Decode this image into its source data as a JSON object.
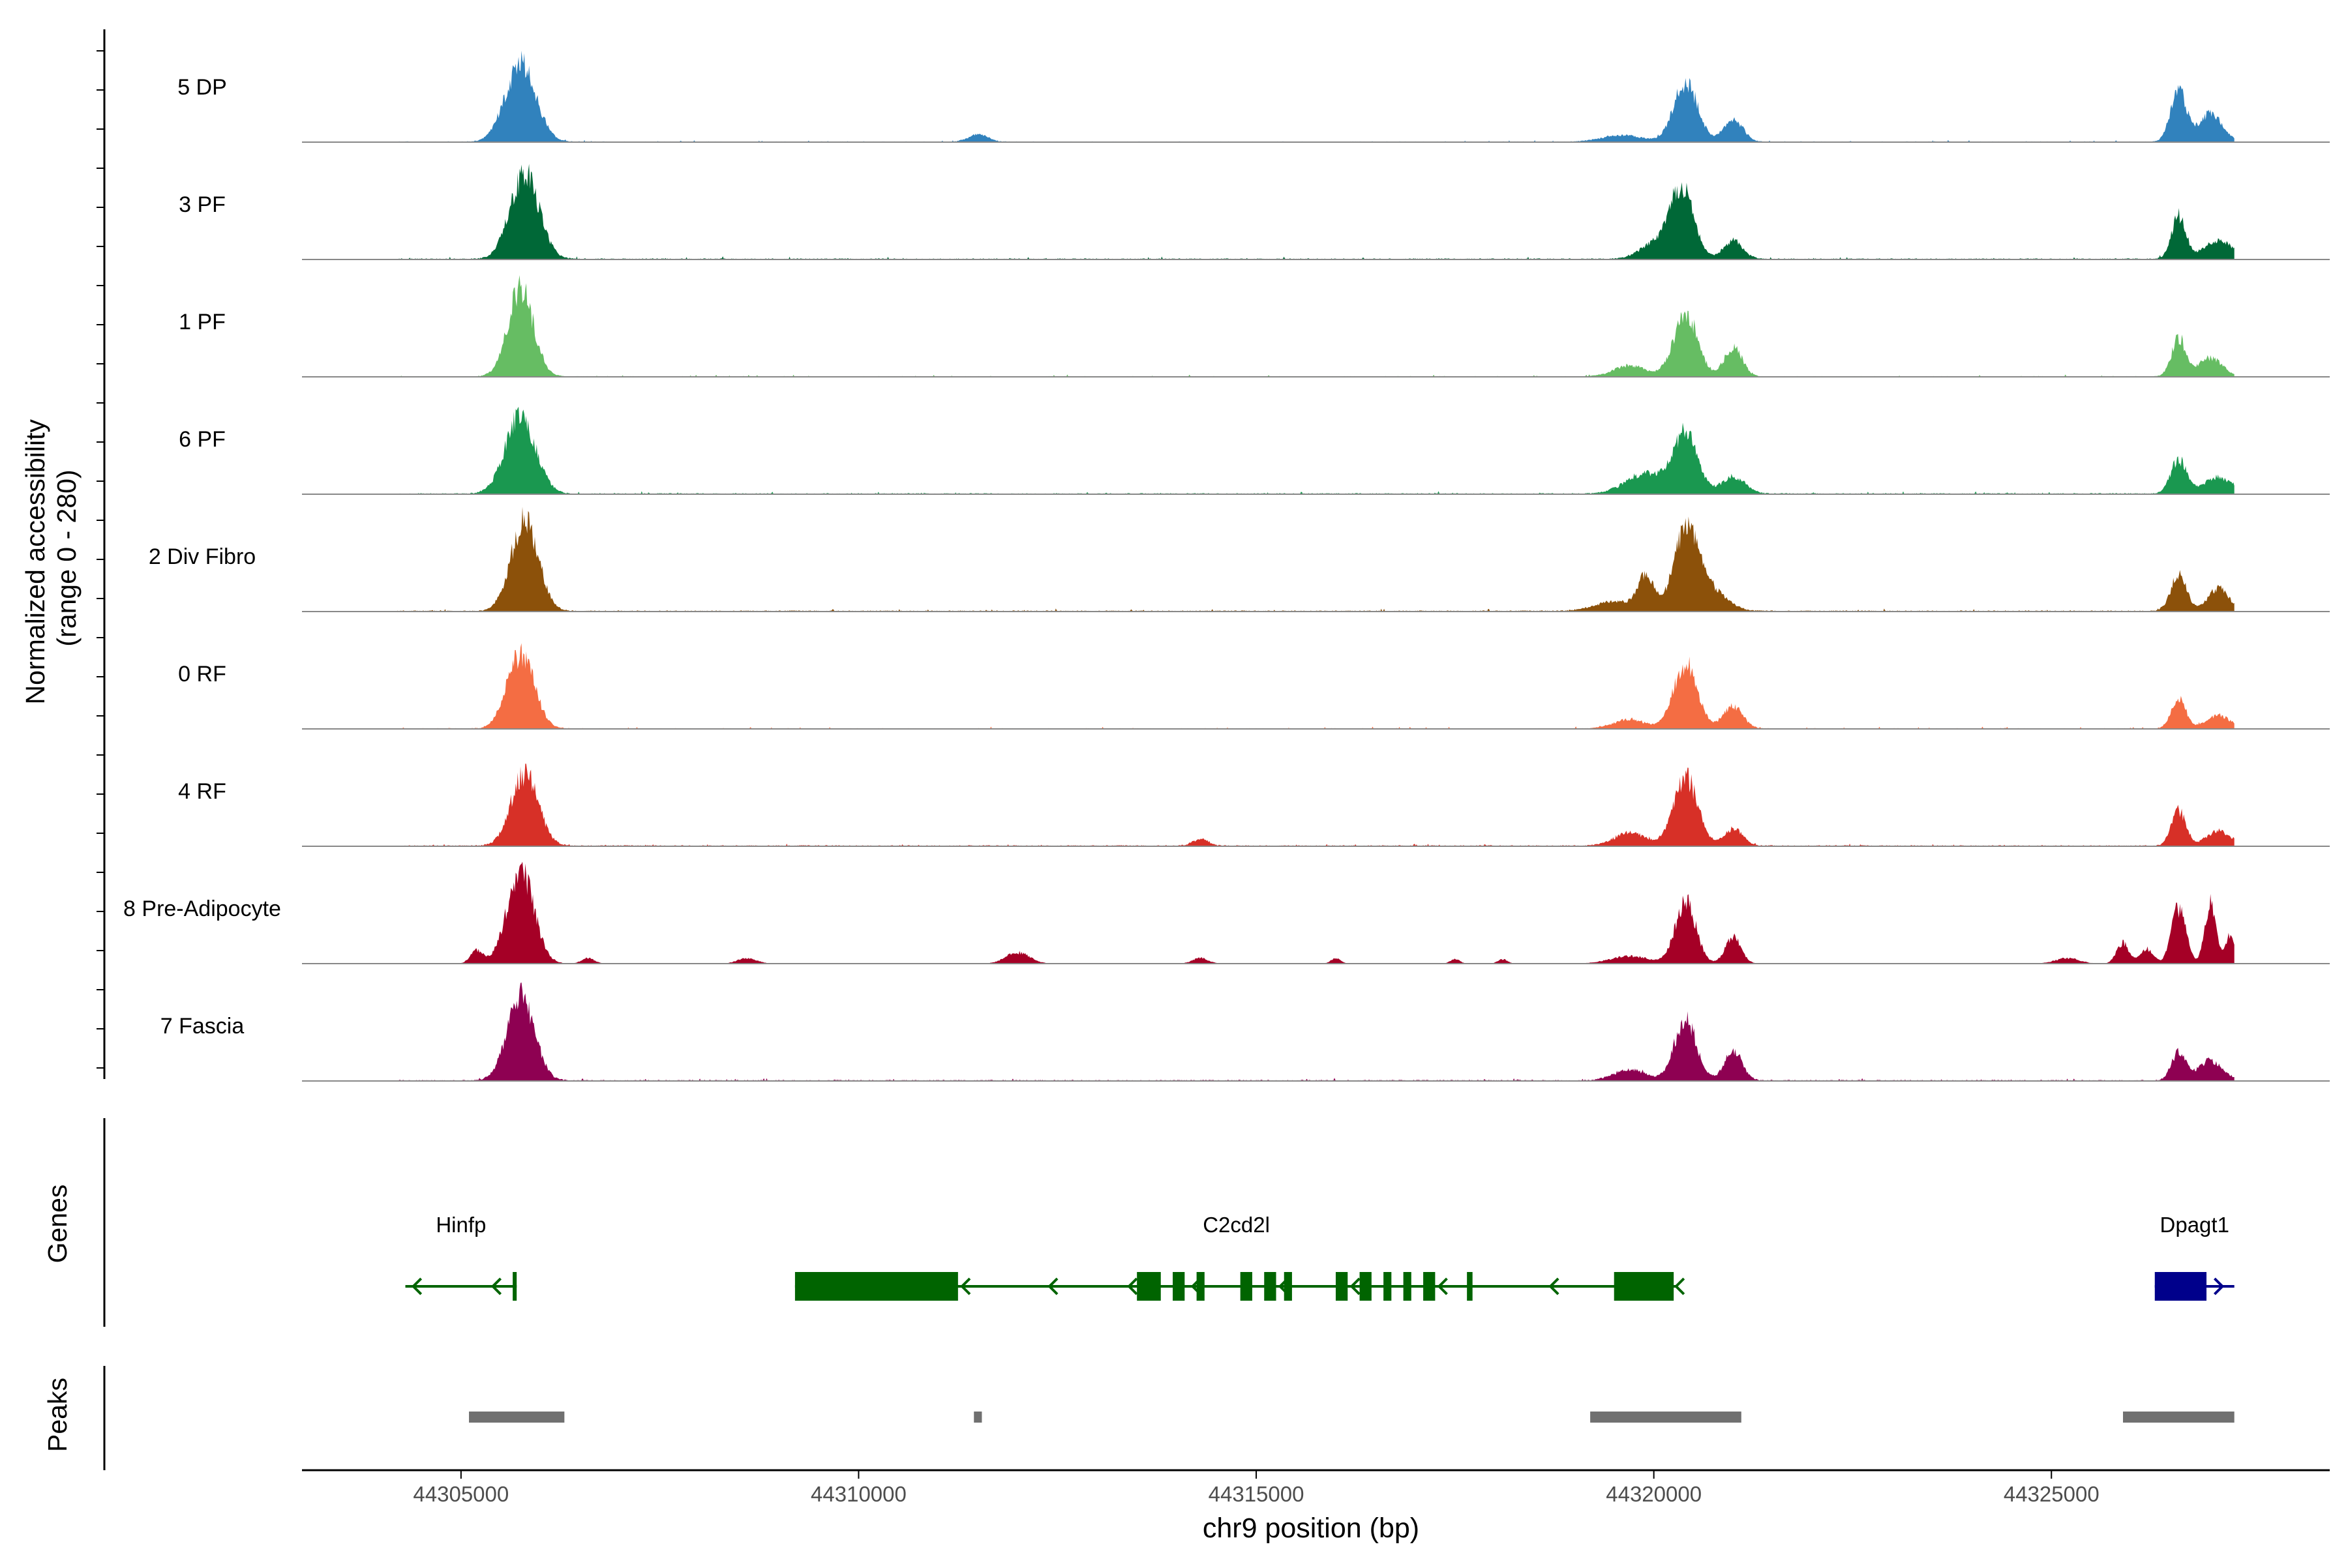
{
  "chart_data": {
    "type": "area",
    "title": "",
    "xlabel": "chr9 position (bp)",
    "ylabel_line1": "Normalized accessibility",
    "ylabel_line2": "(range 0 - 280)",
    "xlim": [
      44303000,
      44328500
    ],
    "data_xmax": 44327300,
    "ylim": [
      0,
      280
    ],
    "x_ticks": [
      44305000,
      44310000,
      44315000,
      44320000,
      44325000
    ],
    "x_tick_labels": [
      "44305000",
      "44310000",
      "44315000",
      "44320000",
      "44325000"
    ],
    "tracks": [
      {
        "name": "5 DP",
        "color": "#3182BD",
        "base": 4,
        "bg": 2,
        "peaks": [
          [
            44305750,
            210,
            190
          ],
          [
            44311500,
            20,
            120
          ],
          [
            44320400,
            160,
            150
          ],
          [
            44321000,
            60,
            120
          ],
          [
            44326600,
            135,
            100
          ],
          [
            44327000,
            75,
            150
          ],
          [
            44319600,
            18,
            250
          ]
        ]
      },
      {
        "name": "3 PF",
        "color": "#006837",
        "base": 6,
        "bg": 3,
        "peaks": [
          [
            44305800,
            230,
            180
          ],
          [
            44320350,
            190,
            150
          ],
          [
            44320000,
            40,
            180
          ],
          [
            44321000,
            50,
            120
          ],
          [
            44326600,
            115,
            90
          ],
          [
            44327100,
            50,
            180
          ]
        ]
      },
      {
        "name": "1 PF",
        "color": "#66BD63",
        "base": 5,
        "bg": 2,
        "peaks": [
          [
            44305750,
            235,
            160
          ],
          [
            44320400,
            170,
            150
          ],
          [
            44321000,
            80,
            110
          ],
          [
            44319700,
            30,
            200
          ],
          [
            44326600,
            100,
            90
          ],
          [
            44327000,
            50,
            150
          ]
        ]
      },
      {
        "name": "6 PF",
        "color": "#1A9850",
        "base": 6,
        "bg": 3,
        "peaks": [
          [
            44305750,
            210,
            190
          ],
          [
            44320400,
            160,
            150
          ],
          [
            44319900,
            55,
            250
          ],
          [
            44321000,
            45,
            150
          ],
          [
            44326600,
            90,
            100
          ],
          [
            44327100,
            45,
            180
          ]
        ]
      },
      {
        "name": "2 Div Fibro",
        "color": "#8C510A",
        "base": 6,
        "bg": 3,
        "peaks": [
          [
            44305800,
            245,
            170
          ],
          [
            44320400,
            210,
            150
          ],
          [
            44319900,
            95,
            100
          ],
          [
            44320700,
            60,
            200
          ],
          [
            44319500,
            25,
            250
          ],
          [
            44326600,
            95,
            100
          ],
          [
            44327100,
            60,
            130
          ]
        ]
      },
      {
        "name": "0 RF",
        "color": "#F46D43",
        "base": 5,
        "bg": 2,
        "peaks": [
          [
            44305750,
            200,
            170
          ],
          [
            44320400,
            175,
            150
          ],
          [
            44321000,
            60,
            120
          ],
          [
            44319700,
            25,
            200
          ],
          [
            44326600,
            80,
            90
          ],
          [
            44327100,
            35,
            150
          ]
        ]
      },
      {
        "name": "4 RF",
        "color": "#D73027",
        "base": 5,
        "bg": 3,
        "peaks": [
          [
            44305800,
            195,
            170
          ],
          [
            44320400,
            185,
            150
          ],
          [
            44321000,
            45,
            120
          ],
          [
            44319700,
            35,
            200
          ],
          [
            44326600,
            95,
            90
          ],
          [
            44327100,
            40,
            150
          ],
          [
            44314300,
            18,
            100
          ]
        ]
      },
      {
        "name": "8 Pre-Adipocyte",
        "color": "#A50026",
        "base": 0,
        "bg": 0,
        "peaks": [
          [
            44305750,
            245,
            170
          ],
          [
            44305200,
            35,
            80
          ],
          [
            44319700,
            20,
            250
          ],
          [
            44320400,
            165,
            130
          ],
          [
            44321000,
            70,
            100
          ],
          [
            44325200,
            15,
            150
          ],
          [
            44325900,
            55,
            80
          ],
          [
            44326200,
            40,
            80
          ],
          [
            44326600,
            150,
            90
          ],
          [
            44327000,
            165,
            70
          ],
          [
            44327250,
            80,
            60
          ],
          [
            44306600,
            15,
            80
          ],
          [
            44308600,
            15,
            120
          ],
          [
            44312000,
            30,
            150
          ],
          [
            44314300,
            15,
            100
          ],
          [
            44316000,
            15,
            60
          ],
          [
            44317500,
            12,
            60
          ],
          [
            44318100,
            12,
            60
          ]
        ]
      },
      {
        "name": "7 Fascia",
        "color": "#8E0152",
        "base": 6,
        "bg": 3,
        "peaks": [
          [
            44305750,
            230,
            170
          ],
          [
            44320400,
            160,
            140
          ],
          [
            44321000,
            80,
            110
          ],
          [
            44319700,
            30,
            200
          ],
          [
            44326600,
            75,
            90
          ],
          [
            44327000,
            55,
            150
          ]
        ]
      }
    ],
    "genes": [
      {
        "name": "Hinfp",
        "strand": "-",
        "color": "#006400",
        "start": 44304300,
        "end": 44305700,
        "exons": [
          [
            44305650,
            44305700
          ]
        ],
        "arrows": [
          44304400,
          44305400
        ]
      },
      {
        "name": "C2cd2l",
        "strand": "-",
        "color": "#006400",
        "start": 44309200,
        "end": 44320300,
        "exons": [
          [
            44309200,
            44311250
          ],
          [
            44313500,
            44313800
          ],
          [
            44313950,
            44314100
          ],
          [
            44314250,
            44314350
          ],
          [
            44314800,
            44314950
          ],
          [
            44315100,
            44315250
          ],
          [
            44315350,
            44315450
          ],
          [
            44316000,
            44316150
          ],
          [
            44316300,
            44316450
          ],
          [
            44316600,
            44316700
          ],
          [
            44316850,
            44316950
          ],
          [
            44317100,
            44317250
          ],
          [
            44317650,
            44317720
          ],
          [
            44319500,
            44320250
          ]
        ],
        "arrows": [
          44311300,
          44312400,
          44313400,
          44314200,
          44315300,
          44316200,
          44317300,
          44318700,
          44320280
        ]
      },
      {
        "name": "Dpagt1",
        "strand": "+",
        "color": "#00008B",
        "start": 44326300,
        "end": 44327300,
        "exons": [
          [
            44326300,
            44326950
          ]
        ],
        "arrows": [
          44327150
        ]
      }
    ],
    "peaks_track": [
      [
        44305100,
        44306300
      ],
      [
        44311450,
        44311550
      ],
      [
        44319200,
        44321100
      ],
      [
        44325900,
        44327300
      ]
    ],
    "panel_labels": {
      "genes": "Genes",
      "peaks": "Peaks"
    }
  }
}
